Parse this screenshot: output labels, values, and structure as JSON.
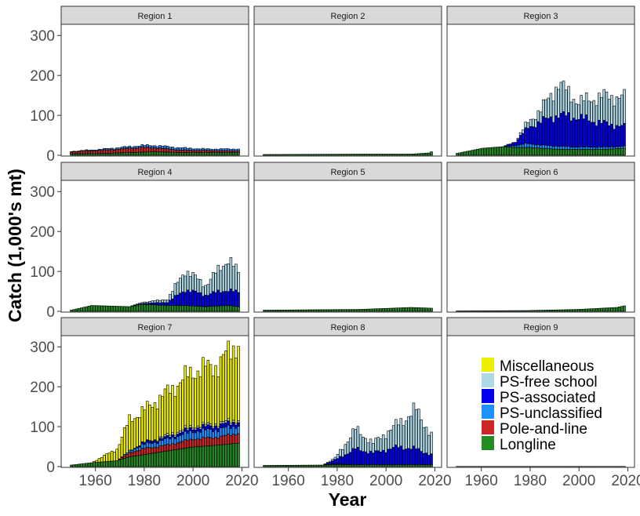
{
  "chart_data": {
    "type": "bar",
    "stacked": true,
    "xlabel": "Year",
    "ylabel": "Catch (1,000's mt)",
    "xlim": [
      1948,
      2022
    ],
    "ylim": [
      0,
      330
    ],
    "x_ticks": [
      1960,
      1980,
      2000,
      2020
    ],
    "y_ticks": [
      0,
      100,
      200,
      300
    ],
    "grid": false,
    "legend_position": "inside-bottom-right-panel",
    "series_order": [
      "Longline",
      "Pole-and-line",
      "PS-unclassified",
      "PS-associated",
      "PS-free school",
      "Miscellaneous"
    ],
    "colors": {
      "Miscellaneous": "#eeee00",
      "PS-free school": "#add8e6",
      "PS-associated": "#0000ee",
      "PS-unclassified": "#1e90ff",
      "Pole-and-line": "#cd2626",
      "Longline": "#228b22"
    },
    "legend": [
      "Miscellaneous",
      "PS-free school",
      "PS-associated",
      "PS-unclassified",
      "Pole-and-line",
      "Longline"
    ],
    "panels": [
      {
        "label": "Region 1",
        "anchors": [
          {
            "year": 1952,
            "Longline": 4,
            "Pole-and-line": 5,
            "PS-unclassified": 1
          },
          {
            "year": 1965,
            "Longline": 5,
            "Pole-and-line": 8,
            "PS-unclassified": 3
          },
          {
            "year": 1980,
            "Longline": 8,
            "Pole-and-line": 12,
            "PS-unclassified": 5
          },
          {
            "year": 1985,
            "Longline": 9,
            "Pole-and-line": 10,
            "PS-unclassified": 6
          },
          {
            "year": 1995,
            "Longline": 7,
            "Pole-and-line": 6,
            "PS-unclassified": 6
          },
          {
            "year": 2005,
            "Longline": 7,
            "Pole-and-line": 5,
            "PS-unclassified": 4
          },
          {
            "year": 2018,
            "Longline": 7,
            "Pole-and-line": 4,
            "PS-unclassified": 5
          }
        ]
      },
      {
        "label": "Region 2",
        "anchors": [
          {
            "year": 1952,
            "Longline": 2
          },
          {
            "year": 1990,
            "Longline": 3
          },
          {
            "year": 2010,
            "Longline": 3
          },
          {
            "year": 2017,
            "Longline": 6
          },
          {
            "year": 2018,
            "Longline": 9
          }
        ]
      },
      {
        "label": "Region 3",
        "anchors": [
          {
            "year": 1952,
            "Longline": 5
          },
          {
            "year": 1962,
            "Longline": 18
          },
          {
            "year": 1970,
            "Longline": 22
          },
          {
            "year": 1975,
            "Longline": 20,
            "PS-unclassified": 5,
            "PS-associated": 10
          },
          {
            "year": 1980,
            "Longline": 20,
            "PS-unclassified": 10,
            "PS-associated": 40,
            "PS-free school": 15
          },
          {
            "year": 1985,
            "Longline": 18,
            "PS-unclassified": 8,
            "PS-associated": 60,
            "PS-free school": 30
          },
          {
            "year": 1992,
            "Longline": 15,
            "PS-unclassified": 8,
            "PS-associated": 80,
            "PS-free school": 80
          },
          {
            "year": 2000,
            "Longline": 15,
            "PS-unclassified": 6,
            "PS-associated": 75,
            "PS-free school": 40
          },
          {
            "year": 2010,
            "Longline": 15,
            "PS-unclassified": 6,
            "PS-associated": 60,
            "PS-free school": 70
          },
          {
            "year": 2018,
            "Longline": 18,
            "PS-unclassified": 5,
            "PS-associated": 50,
            "PS-free school": 75
          }
        ]
      },
      {
        "label": "Region 4",
        "anchors": [
          {
            "year": 1952,
            "Longline": 3
          },
          {
            "year": 1960,
            "Longline": 15
          },
          {
            "year": 1975,
            "Longline": 12
          },
          {
            "year": 1980,
            "Longline": 18,
            "PS-associated": 2,
            "PS-free school": 3
          },
          {
            "year": 1990,
            "Longline": 15,
            "PS-associated": 8,
            "PS-free school": 8
          },
          {
            "year": 1997,
            "Longline": 15,
            "PS-associated": 40,
            "PS-free school": 50
          },
          {
            "year": 2005,
            "Longline": 12,
            "PS-associated": 30,
            "PS-free school": 25
          },
          {
            "year": 2014,
            "Longline": 15,
            "PS-associated": 40,
            "PS-free school": 80
          },
          {
            "year": 2018,
            "Longline": 12,
            "PS-associated": 35,
            "PS-free school": 50
          }
        ]
      },
      {
        "label": "Region 5",
        "anchors": [
          {
            "year": 1952,
            "Longline": 3
          },
          {
            "year": 1970,
            "Longline": 4
          },
          {
            "year": 1990,
            "Longline": 5
          },
          {
            "year": 2010,
            "Longline": 10
          },
          {
            "year": 2018,
            "Longline": 8
          }
        ]
      },
      {
        "label": "Region 6",
        "anchors": [
          {
            "year": 1952,
            "Longline": 1
          },
          {
            "year": 1980,
            "Longline": 2
          },
          {
            "year": 2000,
            "Longline": 5
          },
          {
            "year": 2015,
            "Longline": 10
          },
          {
            "year": 2018,
            "Longline": 14
          }
        ]
      },
      {
        "label": "Region 7",
        "anchors": [
          {
            "year": 1952,
            "Longline": 4
          },
          {
            "year": 1960,
            "Longline": 10
          },
          {
            "year": 1970,
            "Longline": 15,
            "Miscellaneous": 30
          },
          {
            "year": 1975,
            "Longline": 25,
            "Pole-and-line": 10,
            "PS-unclassified": 5,
            "Miscellaneous": 80
          },
          {
            "year": 1980,
            "Longline": 30,
            "Pole-and-line": 15,
            "PS-unclassified": 10,
            "PS-associated": 5,
            "Miscellaneous": 80
          },
          {
            "year": 1990,
            "Longline": 40,
            "Pole-and-line": 15,
            "PS-unclassified": 15,
            "PS-associated": 5,
            "PS-free school": 5,
            "Miscellaneous": 110
          },
          {
            "year": 2000,
            "Longline": 50,
            "Pole-and-line": 20,
            "PS-unclassified": 20,
            "PS-associated": 8,
            "PS-free school": 5,
            "Miscellaneous": 140
          },
          {
            "year": 2010,
            "Longline": 55,
            "Pole-and-line": 20,
            "PS-unclassified": 20,
            "PS-associated": 10,
            "PS-free school": 5,
            "Miscellaneous": 150
          },
          {
            "year": 2018,
            "Longline": 60,
            "Pole-and-line": 25,
            "PS-unclassified": 20,
            "PS-associated": 10,
            "PS-free school": 5,
            "Miscellaneous": 200
          }
        ]
      },
      {
        "label": "Region 8",
        "anchors": [
          {
            "year": 1952,
            "Longline": 3
          },
          {
            "year": 1975,
            "Longline": 4
          },
          {
            "year": 1980,
            "Longline": 5,
            "Pole-and-line": 2,
            "PS-associated": 10,
            "PS-free school": 5
          },
          {
            "year": 1988,
            "Longline": 5,
            "PS-associated": 40,
            "PS-free school": 50
          },
          {
            "year": 1995,
            "Longline": 5,
            "PS-associated": 30,
            "PS-free school": 25
          },
          {
            "year": 2005,
            "Longline": 5,
            "PS-associated": 45,
            "PS-free school": 60
          },
          {
            "year": 2012,
            "Longline": 5,
            "PS-associated": 40,
            "PS-free school": 100
          },
          {
            "year": 2018,
            "Longline": 5,
            "PS-associated": 25,
            "PS-free school": 50
          }
        ]
      },
      {
        "label": "Region 9",
        "anchors": [
          {
            "year": 1952,
            "Longline": 0.5
          },
          {
            "year": 2018,
            "Longline": 0.5
          }
        ]
      }
    ]
  }
}
